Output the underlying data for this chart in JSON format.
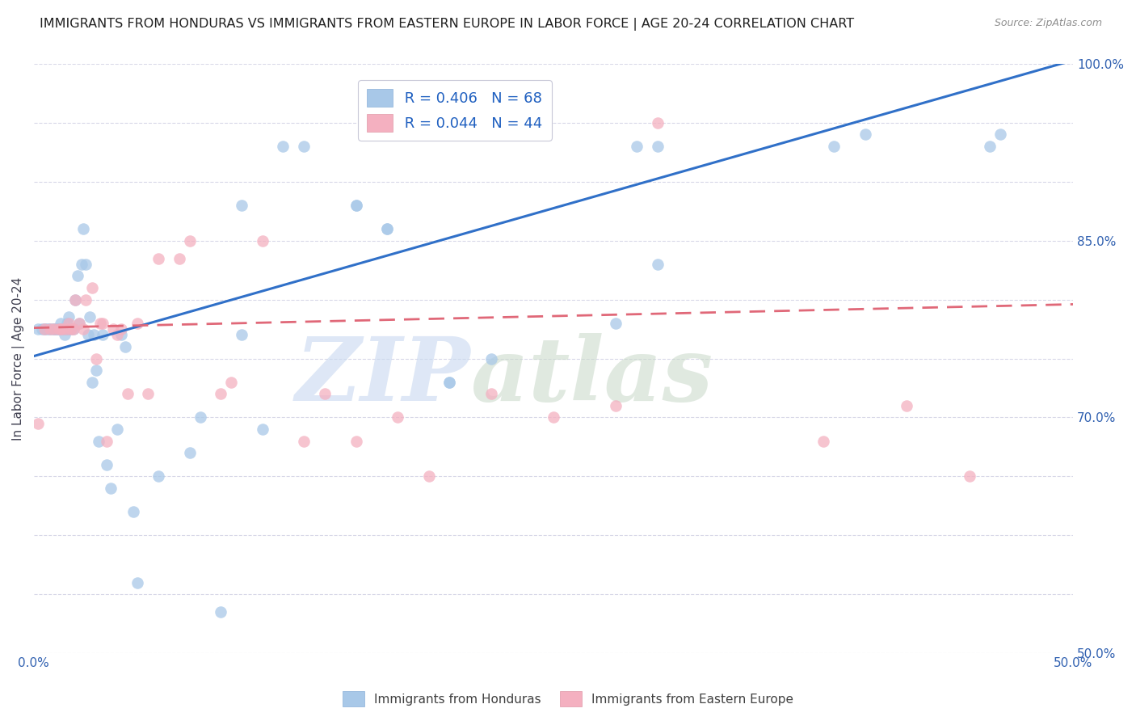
{
  "title": "IMMIGRANTS FROM HONDURAS VS IMMIGRANTS FROM EASTERN EUROPE IN LABOR FORCE | AGE 20-24 CORRELATION CHART",
  "source": "Source: ZipAtlas.com",
  "ylabel": "In Labor Force | Age 20-24",
  "x_min": 0.0,
  "x_max": 0.5,
  "y_min": 0.5,
  "y_max": 1.0,
  "legend_r1": "R = 0.406",
  "legend_n1": "N = 68",
  "legend_r2": "R = 0.044",
  "legend_n2": "N = 44",
  "blue_color": "#a8c8e8",
  "pink_color": "#f4b0c0",
  "blue_line_color": "#3070c8",
  "pink_line_color": "#e06878",
  "grid_color": "#d8d8e8",
  "watermark_zip": "ZIP",
  "watermark_atlas": "atlas",
  "watermark_color_zip": "#c8d8f0",
  "watermark_color_atlas": "#c8d8c8",
  "blue_line_x": [
    0.0,
    0.5
  ],
  "blue_line_y": [
    0.752,
    1.003
  ],
  "pink_line_x": [
    0.0,
    0.5
  ],
  "pink_line_y": [
    0.776,
    0.796
  ],
  "honduras_x": [
    0.002,
    0.004,
    0.005,
    0.006,
    0.007,
    0.008,
    0.009,
    0.01,
    0.01,
    0.011,
    0.011,
    0.012,
    0.012,
    0.013,
    0.013,
    0.014,
    0.015,
    0.015,
    0.016,
    0.016,
    0.017,
    0.017,
    0.018,
    0.019,
    0.02,
    0.021,
    0.022,
    0.023,
    0.024,
    0.025,
    0.026,
    0.027,
    0.028,
    0.029,
    0.03,
    0.031,
    0.033,
    0.035,
    0.037,
    0.04,
    0.042,
    0.044,
    0.048,
    0.05,
    0.06,
    0.075,
    0.08,
    0.09,
    0.1,
    0.11,
    0.12,
    0.13,
    0.155,
    0.17,
    0.2,
    0.22,
    0.28,
    0.3,
    0.385,
    0.4,
    0.46,
    0.465,
    0.29,
    0.3,
    0.1,
    0.155,
    0.17,
    0.2
  ],
  "honduras_y": [
    0.775,
    0.775,
    0.775,
    0.775,
    0.775,
    0.775,
    0.775,
    0.775,
    0.775,
    0.775,
    0.775,
    0.775,
    0.775,
    0.775,
    0.78,
    0.775,
    0.775,
    0.77,
    0.775,
    0.78,
    0.775,
    0.785,
    0.775,
    0.775,
    0.8,
    0.82,
    0.78,
    0.83,
    0.86,
    0.83,
    0.77,
    0.785,
    0.73,
    0.77,
    0.74,
    0.68,
    0.77,
    0.66,
    0.64,
    0.69,
    0.77,
    0.76,
    0.62,
    0.56,
    0.65,
    0.67,
    0.7,
    0.535,
    0.77,
    0.69,
    0.93,
    0.93,
    0.88,
    0.86,
    0.73,
    0.75,
    0.78,
    0.83,
    0.93,
    0.94,
    0.93,
    0.94,
    0.93,
    0.93,
    0.88,
    0.88,
    0.86,
    0.73
  ],
  "eastern_europe_x": [
    0.002,
    0.005,
    0.008,
    0.01,
    0.012,
    0.014,
    0.016,
    0.017,
    0.018,
    0.02,
    0.022,
    0.025,
    0.028,
    0.03,
    0.033,
    0.035,
    0.038,
    0.04,
    0.045,
    0.05,
    0.06,
    0.075,
    0.09,
    0.11,
    0.13,
    0.155,
    0.175,
    0.22,
    0.25,
    0.3,
    0.38,
    0.42,
    0.45,
    0.013,
    0.019,
    0.024,
    0.032,
    0.042,
    0.055,
    0.07,
    0.095,
    0.14,
    0.19,
    0.28
  ],
  "eastern_europe_y": [
    0.695,
    0.775,
    0.775,
    0.775,
    0.775,
    0.775,
    0.775,
    0.78,
    0.775,
    0.8,
    0.78,
    0.8,
    0.81,
    0.75,
    0.78,
    0.68,
    0.775,
    0.77,
    0.72,
    0.78,
    0.835,
    0.85,
    0.72,
    0.85,
    0.68,
    0.68,
    0.7,
    0.72,
    0.7,
    0.95,
    0.68,
    0.71,
    0.65,
    0.775,
    0.775,
    0.775,
    0.78,
    0.775,
    0.72,
    0.835,
    0.73,
    0.72,
    0.65,
    0.71
  ]
}
